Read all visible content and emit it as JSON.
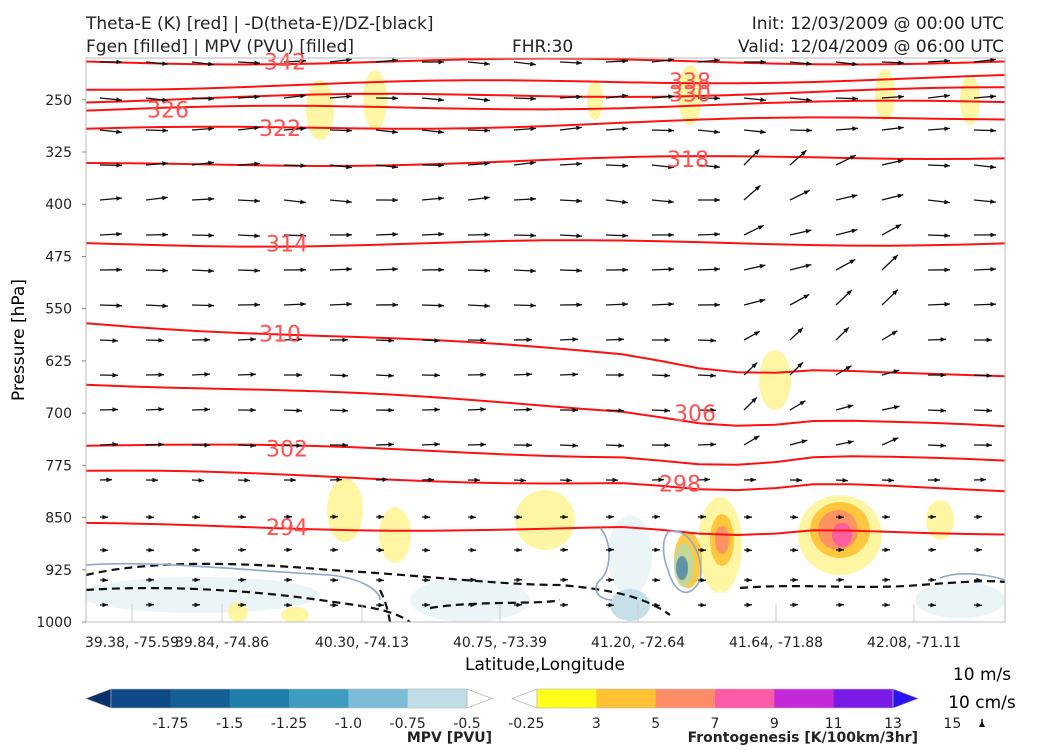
{
  "header": {
    "title_line1": "Theta-E (K) [red] | -D(theta-E)/DZ-[black]",
    "title_line2": "Fgen [filled] | MPV (PVU) [filled]",
    "fhr": "FHR:30",
    "init": "Init: 12/03/2009 @ 00:00 UTC",
    "valid": "Valid: 12/04/2009 @ 06:00 UTC"
  },
  "chart_data": {
    "type": "cross-section",
    "xlabel": "Latitude,Longitude",
    "ylabel": "Pressure [hPa]",
    "x_ticks": [
      "39.38, -75.59",
      "39.84, -74.86",
      "40.30, -74.13",
      "40.75, -73.39",
      "41.20, -72.64",
      "41.64, -71.88",
      "42.08, -71.11"
    ],
    "y_ticks": [
      250,
      325,
      400,
      475,
      550,
      625,
      700,
      775,
      850,
      925,
      1000
    ],
    "ylim": [
      1000,
      190
    ],
    "y_scale": "linear-inverted",
    "theta_e_contours": [
      {
        "label": "342",
        "p_left": 195,
        "p_right": 195
      },
      {
        "label": "338",
        "p_left": 232,
        "p_right": 218
      },
      {
        "label": "330",
        "p_left": 250,
        "p_right": 236
      },
      {
        "label": "326",
        "p_left": 265,
        "p_right": 254
      },
      {
        "label": "322",
        "p_left": 295,
        "p_right": 275
      },
      {
        "label": "318",
        "p_left": 345,
        "p_right": 330
      },
      {
        "label": "314",
        "p_left": 457,
        "p_right": 455
      },
      {
        "label": "310",
        "p_left": 568,
        "p_right": 650
      },
      {
        "label": "306",
        "p_left": 655,
        "p_right": 723
      },
      {
        "label": "302",
        "p_left": 745,
        "p_right": 770
      },
      {
        "label": "298",
        "p_left": 785,
        "p_right": 810
      },
      {
        "label": "294",
        "p_left": 862,
        "p_right": 870
      }
    ],
    "wind_reference": {
      "horizontal": "10 m/s",
      "vertical": "10 cm/s"
    },
    "colorbars": [
      {
        "title": "MPV [PVU]",
        "ticks": [
          "-1.75",
          "-1.5",
          "-1.25",
          "-1.0",
          "-0.75",
          "-0.5",
          "-0.25"
        ],
        "colors": [
          "#08306b",
          "#0d4a87",
          "#135f96",
          "#1f7eaa",
          "#3e9cc0",
          "#7cbcd6",
          "#c0dde8",
          "#ffffff"
        ]
      },
      {
        "title": "Frontogenesis [K/100km/3hr]",
        "ticks": [
          "3",
          "5",
          "7",
          "9",
          "11",
          "13",
          "15"
        ],
        "colors": [
          "#ffffff",
          "#ffff1a",
          "#ffc233",
          "#ff8c66",
          "#ff5aa8",
          "#c42ad9",
          "#7a1ae6",
          "#2a14f0"
        ]
      }
    ]
  }
}
